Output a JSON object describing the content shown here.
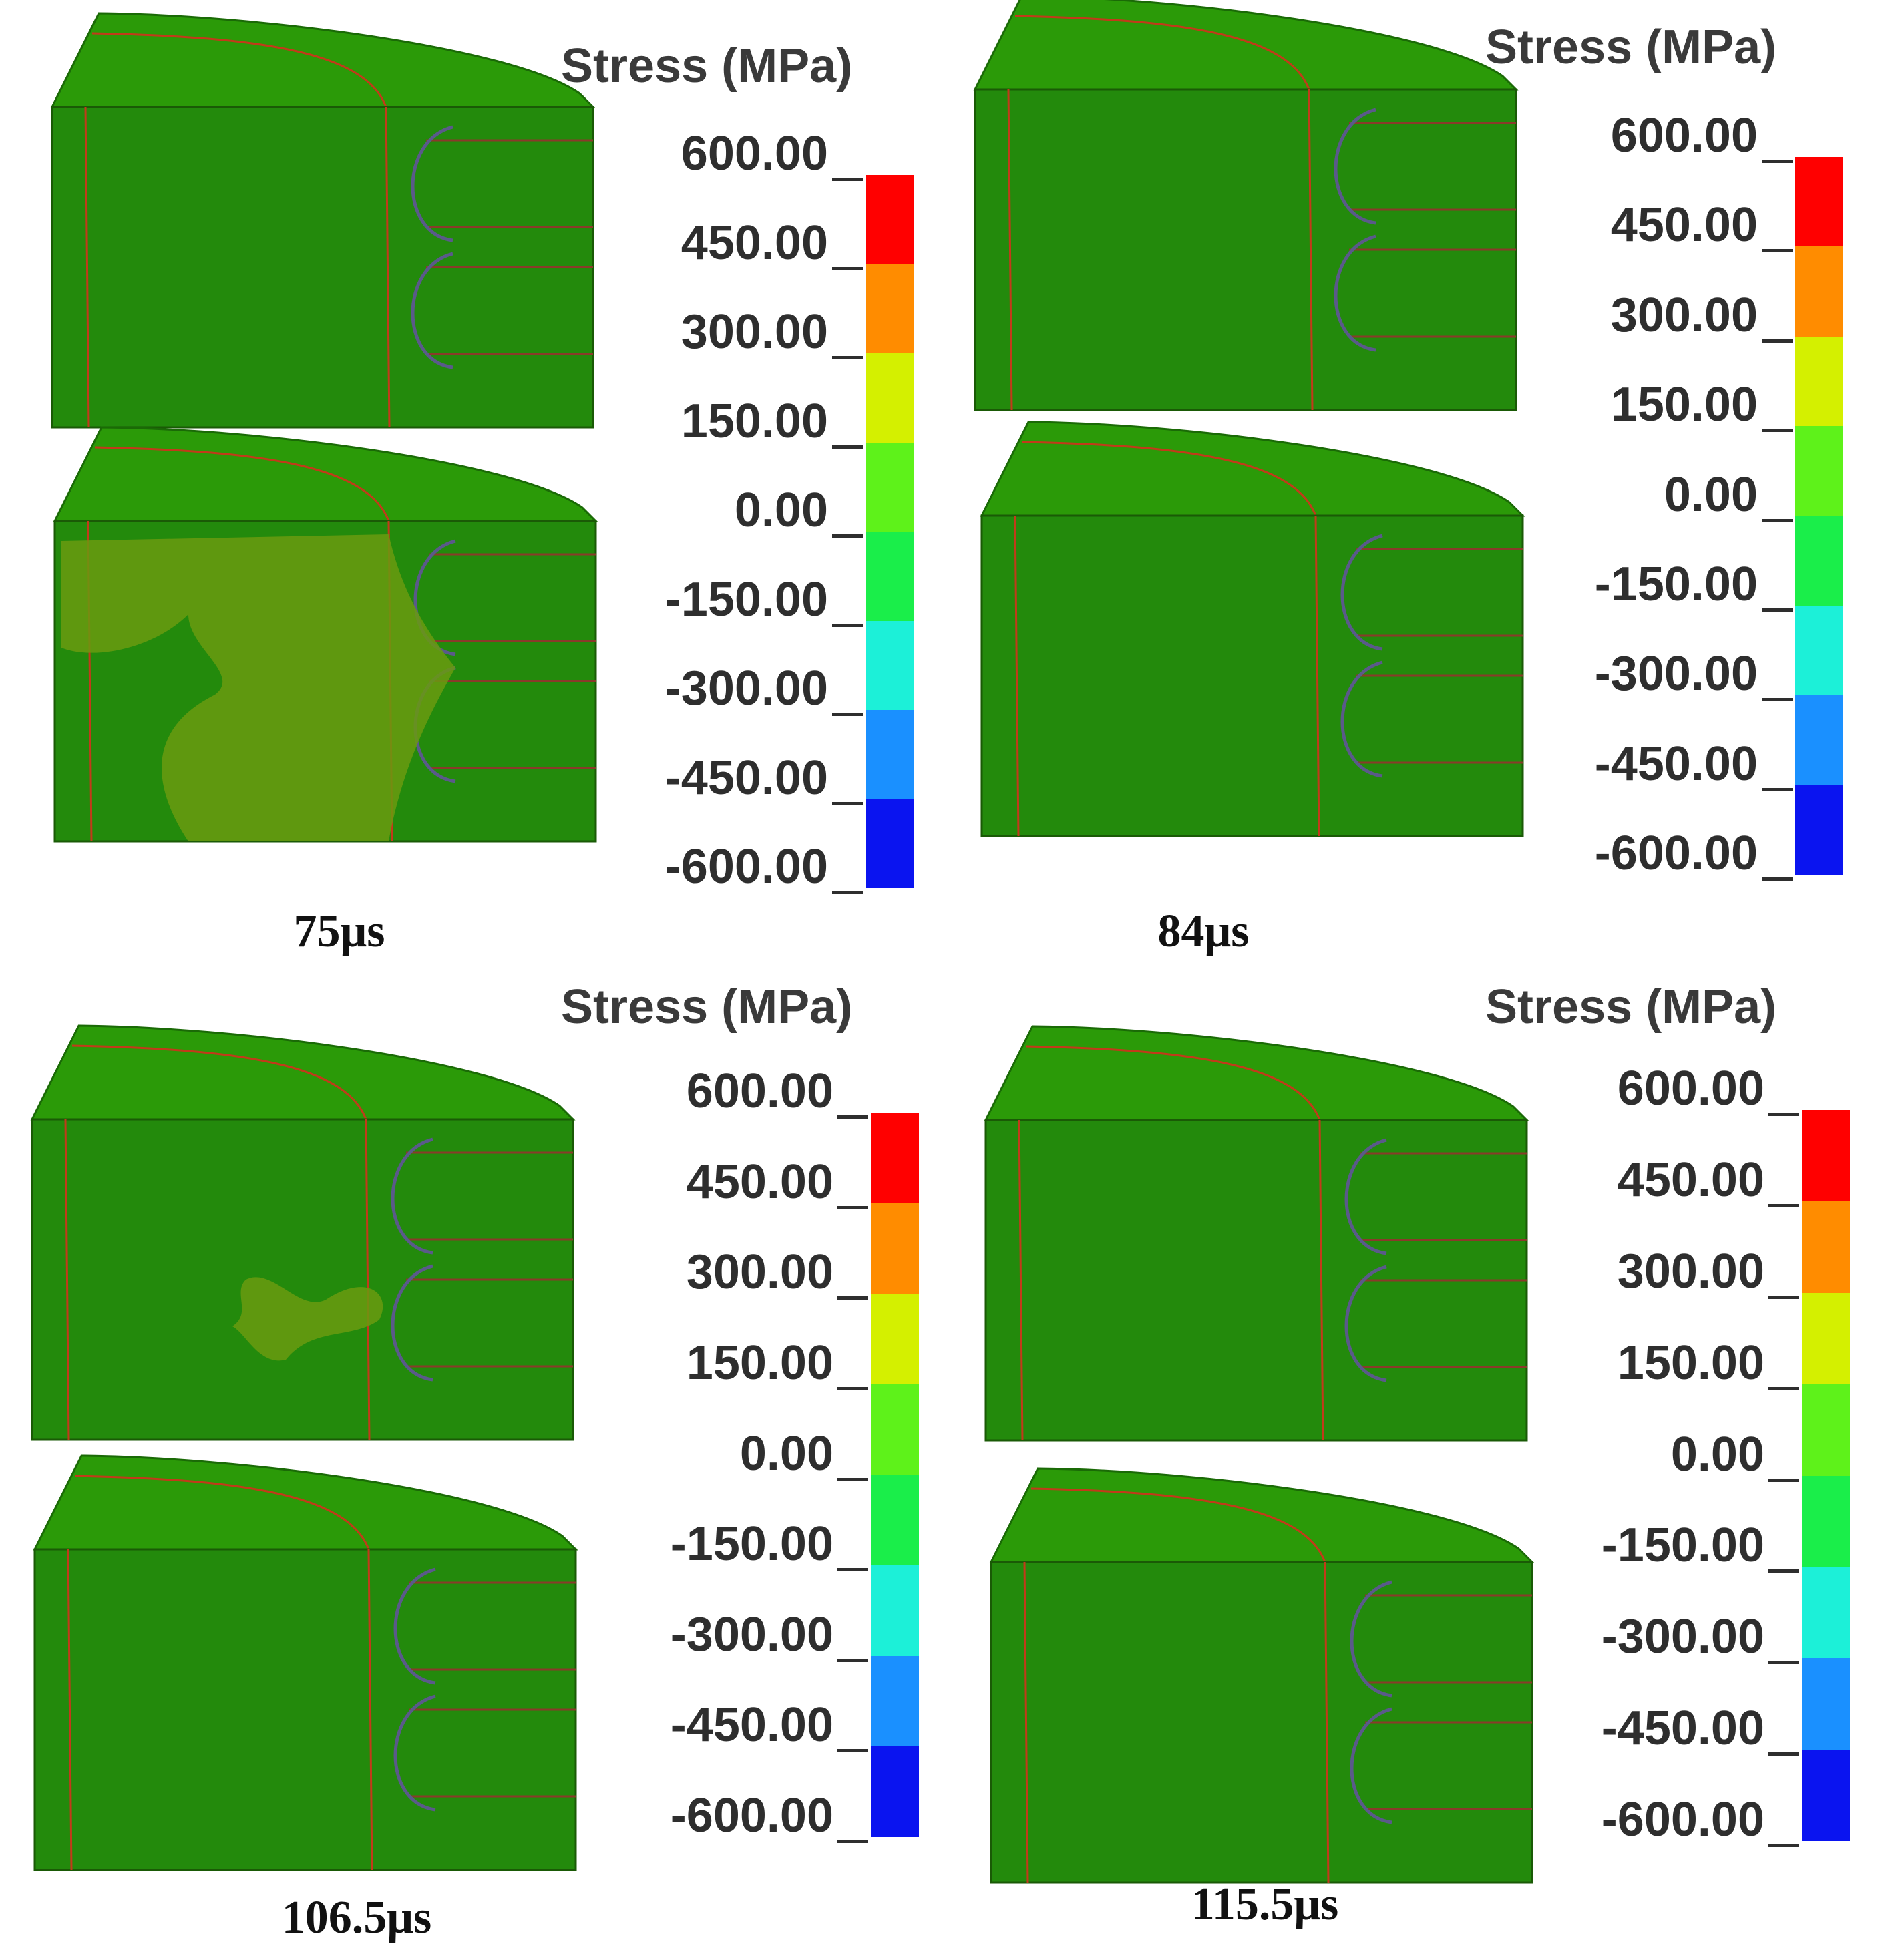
{
  "legend": {
    "title": "Stress (MPa)",
    "ticks": [
      "600.00",
      "450.00",
      "300.00",
      "150.00",
      "0.00",
      "-150.00",
      "-300.00",
      "-450.00",
      "-600.00"
    ],
    "colors": [
      "#ff0000",
      "#ff8c00",
      "#d4f000",
      "#5ef21a",
      "#1aee4a",
      "#1cf0d8",
      "#1a90ff",
      "#0a14f0"
    ]
  },
  "panels": [
    {
      "time_label": "75μs"
    },
    {
      "time_label": "84μs"
    },
    {
      "time_label": "106.5μs"
    },
    {
      "time_label": "115.5μs"
    }
  ]
}
